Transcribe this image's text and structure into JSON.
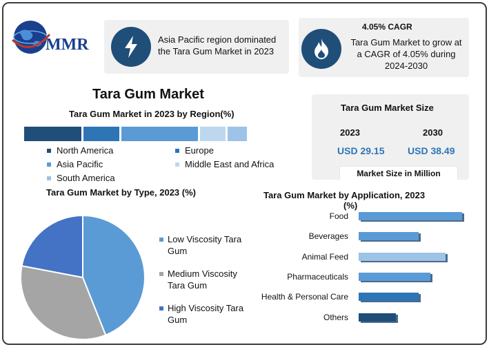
{
  "brand": {
    "logo_text": "MMR"
  },
  "cards": {
    "region": {
      "text_line1": "Asia Pacific region dominated",
      "text_line2": "the Tara Gum Market in 2023"
    },
    "cagr": {
      "heading": "4.05% CAGR",
      "text_line1": "Tara Gum Market to grow at",
      "text_line2": "a CAGR of 4.05% during",
      "text_line3": "2024-2030"
    }
  },
  "main_title": "Tara Gum Market",
  "market_size": {
    "title": "Tara Gum Market Size",
    "year1": "2023",
    "year2": "2030",
    "value1": "USD 29.15",
    "value2": "USD 38.49",
    "footer": "Market Size in Million"
  },
  "colors": {
    "dark_blue": "#1f4e79",
    "mid_blue": "#2e75b6",
    "light_blue": "#5b9bd5",
    "pale_blue": "#bdd7ee",
    "sky_blue": "#9dc3e6",
    "gray": "#a5a5a5",
    "indigo": "#4472c4",
    "value_blue": "#2e75b6"
  },
  "chart_data": [
    {
      "type": "bar",
      "orientation": "stacked-horizontal",
      "title": "Tara Gum Market in 2023 by Region(%)",
      "categories": [
        "North America",
        "Europe",
        "Asia Pacific",
        "Middle East and Africa",
        "South America"
      ],
      "values": [
        27,
        17,
        36,
        12,
        9
      ],
      "colors": [
        "#1f4e79",
        "#2e75b6",
        "#5b9bd5",
        "#bdd7ee",
        "#9dc3e6"
      ],
      "legend_placement": "bottom"
    },
    {
      "type": "pie",
      "title": "Tara Gum Market by  Type, 2023  (%)",
      "categories": [
        "Low Viscosity Tara Gum",
        "Medium Viscosity Tara Gum",
        "High Viscosity Tara Gum"
      ],
      "legend_lines": [
        [
          "Low Viscosity Tara",
          "Gum"
        ],
        [
          "Medium Viscosity",
          "Tara Gum"
        ],
        [
          "High Viscosity Tara",
          "Gum"
        ]
      ],
      "values": [
        44,
        34,
        22
      ],
      "colors": [
        "#5b9bd5",
        "#a5a5a5",
        "#4472c4"
      ],
      "legend_placement": "right"
    },
    {
      "type": "bar",
      "orientation": "horizontal",
      "title_line1": "Tara Gum Market by Application, 2023",
      "title_line2": "(%)",
      "categories": [
        "Food",
        "Beverages",
        "Animal Feed",
        "Pharmaceuticals",
        "Health & Personal Care",
        "Others"
      ],
      "values": [
        100,
        58,
        84,
        69,
        58,
        36
      ],
      "colors": [
        "#5b9bd5",
        "#5b9bd5",
        "#9dc3e6",
        "#5b9bd5",
        "#2e75b6",
        "#1f4e79"
      ]
    }
  ]
}
